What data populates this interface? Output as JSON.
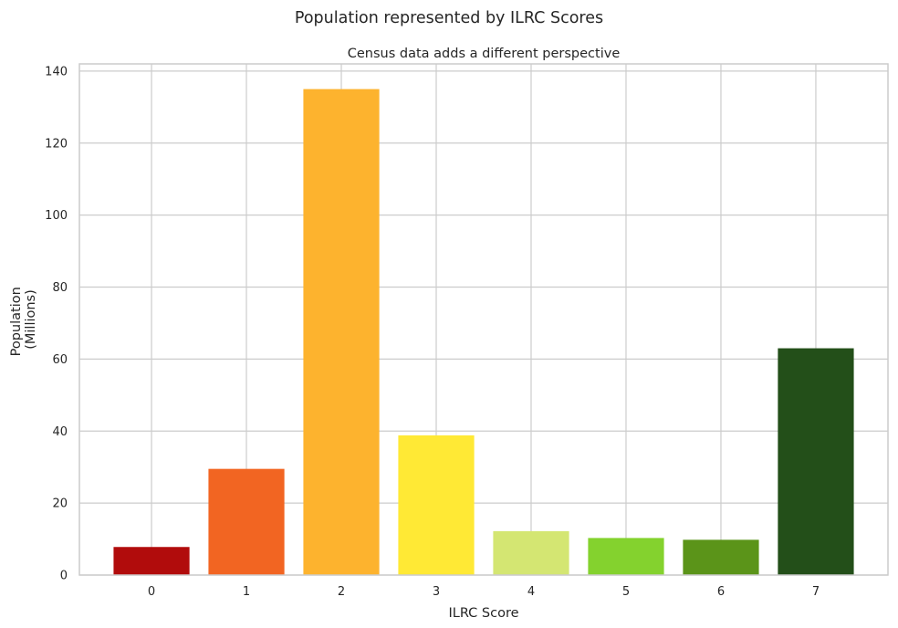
{
  "chart_data": {
    "type": "bar",
    "title": "Population represented by ILRC Scores",
    "subtitle": "Census data adds a different perspective",
    "xlabel": "ILRC Score",
    "ylabel": [
      "Population",
      "(Millions)"
    ],
    "categories": [
      "0",
      "1",
      "2",
      "3",
      "4",
      "5",
      "6",
      "7"
    ],
    "values": [
      7.8,
      29.5,
      135.0,
      38.8,
      12.2,
      10.3,
      9.8,
      63.0
    ],
    "colors": [
      "#b10c0c",
      "#f26522",
      "#fdb32e",
      "#ffe935",
      "#d4e672",
      "#84d22e",
      "#5b9419",
      "#234f19"
    ],
    "ylim": [
      0,
      142
    ],
    "yticks": [
      0,
      20,
      40,
      60,
      80,
      100,
      120,
      140
    ],
    "grid": true,
    "legend": "none"
  }
}
